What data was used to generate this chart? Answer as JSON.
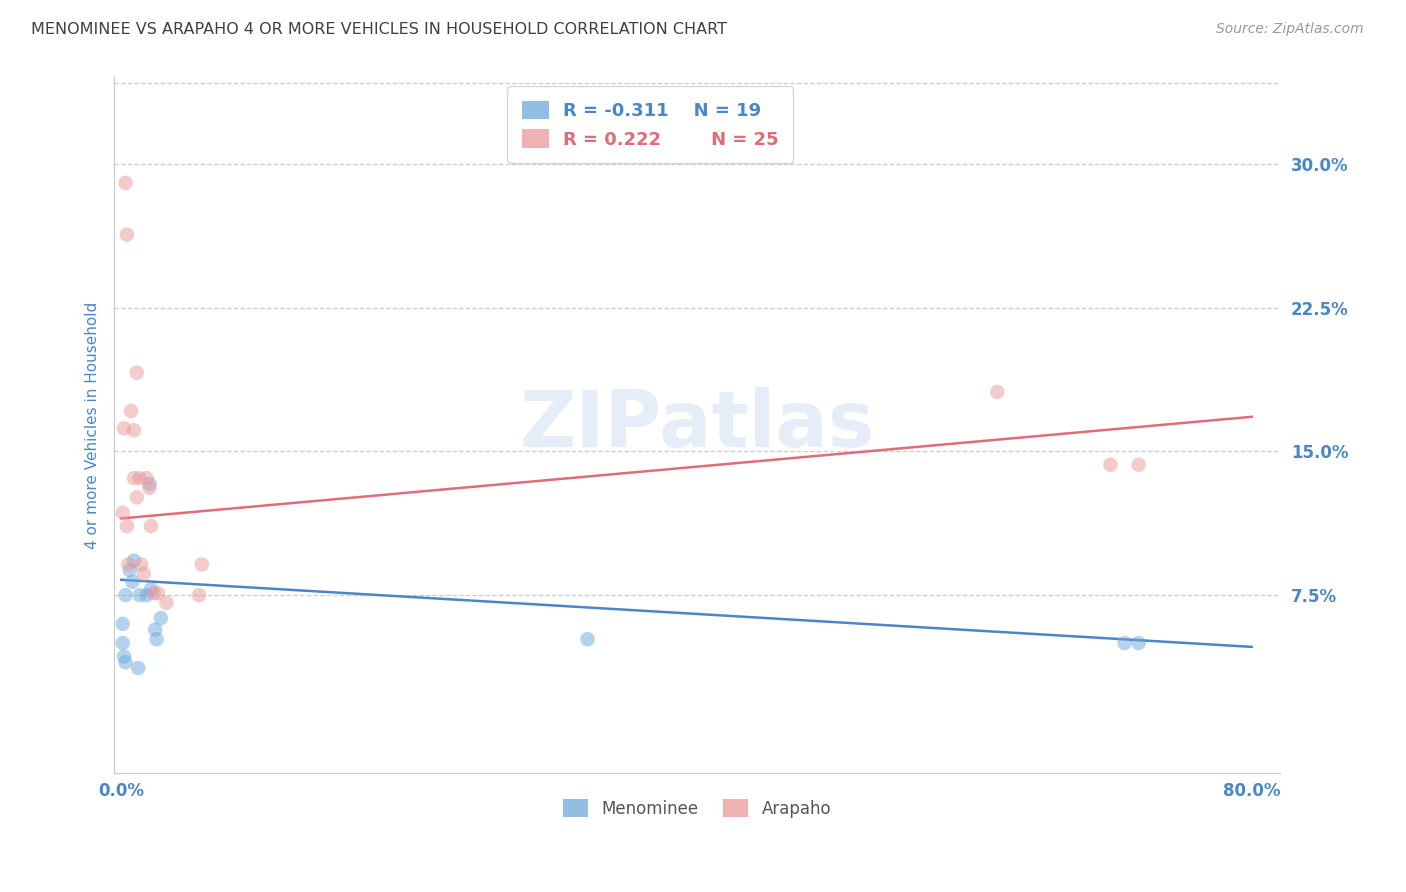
{
  "title": "MENOMINEE VS ARAPAHO 4 OR MORE VEHICLES IN HOUSEHOLD CORRELATION CHART",
  "source": "Source: ZipAtlas.com",
  "ylabel": "4 or more Vehicles in Household",
  "watermark": "ZIPatlas",
  "xlim": [
    -0.005,
    0.82
  ],
  "ylim": [
    -0.018,
    0.345
  ],
  "xtick_vals": [
    0.0,
    0.1,
    0.2,
    0.3,
    0.4,
    0.5,
    0.6,
    0.7,
    0.8
  ],
  "xticklabels": [
    "0.0%",
    "",
    "",
    "",
    "",
    "",
    "",
    "",
    "80.0%"
  ],
  "ytick_vals": [
    0.075,
    0.15,
    0.225,
    0.3
  ],
  "yticklabels": [
    "7.5%",
    "15.0%",
    "22.5%",
    "30.0%"
  ],
  "menominee_x": [
    0.001,
    0.001,
    0.002,
    0.003,
    0.003,
    0.006,
    0.008,
    0.009,
    0.012,
    0.013,
    0.018,
    0.02,
    0.021,
    0.024,
    0.025,
    0.028,
    0.33,
    0.71,
    0.72
  ],
  "menominee_y": [
    0.06,
    0.05,
    0.043,
    0.04,
    0.075,
    0.088,
    0.082,
    0.093,
    0.037,
    0.075,
    0.075,
    0.133,
    0.078,
    0.057,
    0.052,
    0.063,
    0.052,
    0.05,
    0.05
  ],
  "arapaho_x": [
    0.001,
    0.002,
    0.004,
    0.005,
    0.007,
    0.009,
    0.009,
    0.011,
    0.011,
    0.013,
    0.014,
    0.016,
    0.018,
    0.02,
    0.021,
    0.023,
    0.026,
    0.032,
    0.057,
    0.055,
    0.62,
    0.7,
    0.72,
    0.003,
    0.004
  ],
  "arapaho_y": [
    0.118,
    0.162,
    0.111,
    0.091,
    0.171,
    0.161,
    0.136,
    0.191,
    0.126,
    0.136,
    0.091,
    0.086,
    0.136,
    0.131,
    0.111,
    0.076,
    0.076,
    0.071,
    0.091,
    0.075,
    0.181,
    0.143,
    0.143,
    0.29,
    0.263
  ],
  "menominee_color": "#6fa8dc",
  "arapaho_color": "#ea9999",
  "menominee_line_color": "#4a86c8",
  "arapaho_line_color": "#e06c7a",
  "legend_R_menominee": "-0.311",
  "legend_N_menominee": "19",
  "legend_R_arapaho": "0.222",
  "legend_N_arapaho": "25",
  "title_color": "#404040",
  "tick_color": "#4a86c8",
  "grid_color": "#cccccc",
  "marker_size": 110,
  "marker_alpha": 0.5,
  "line_width": 1.8
}
